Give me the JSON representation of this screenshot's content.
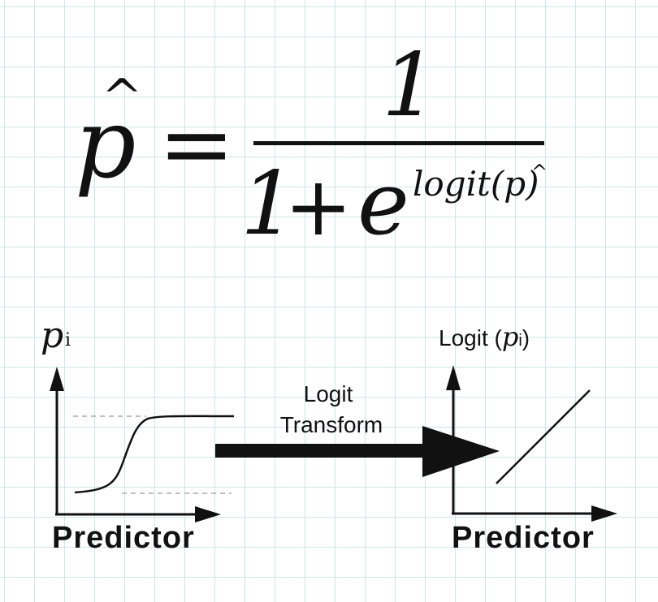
{
  "formula": {
    "lhs": "p",
    "lhs_hat": "^",
    "equals": "=",
    "numerator": "1",
    "denominator_one": "1",
    "plus": "+",
    "base": "e",
    "exponent": "logit(p)",
    "exponent_hat": "^"
  },
  "left_graph": {
    "y_label": "p",
    "y_label_sub": "i",
    "x_label": "Predictor"
  },
  "transform": {
    "line1": "Logit",
    "line2": "Transform"
  },
  "right_graph": {
    "y_label_prefix": "Logit (",
    "y_label_p": "p",
    "y_label_sub": "i",
    "y_label_suffix": ")",
    "x_label": "Predictor"
  }
}
